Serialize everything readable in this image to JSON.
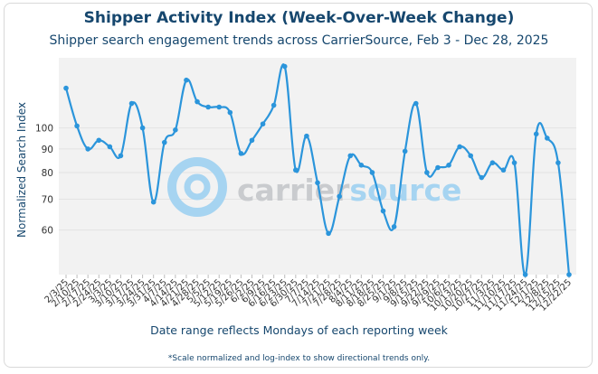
{
  "colors": {
    "line": "#2b95db",
    "title": "#16476e",
    "plot_bg": "#f2f2f2",
    "grid": "#e3e3e3",
    "watermark_gray": "#c9cbce",
    "watermark_blue": "#a6d4f1"
  },
  "chart_data": {
    "type": "line",
    "title": "Shipper Activity Index (Week-Over-Week Change)",
    "subtitle": "Shipper search engagement trends across CarrierSource, Feb 3 - Dec 28, 2025",
    "xlabel": "Date range reflects Mondays of each reporting week",
    "ylabel": "Normalized Search Index",
    "footnote": "*Scale normalized and log-index to show directional trends only.",
    "y_scale": "log",
    "ylim": [
      48,
      142
    ],
    "yticks": [
      60,
      70,
      80,
      90,
      100
    ],
    "watermark": {
      "word_start": "carrier",
      "word_end": "source"
    },
    "categories": [
      "2/3/25",
      "2/10/25",
      "2/17/25",
      "2/24/25",
      "3/3/25",
      "3/10/25",
      "3/17/25",
      "3/24/25",
      "3/31/25",
      "4/7/25",
      "4/14/25",
      "4/21/25",
      "4/28/25",
      "5/5/25",
      "5/12/25",
      "5/19/25",
      "5/26/25",
      "6/2/25",
      "6/9/25",
      "6/16/25",
      "6/23/25",
      "6/30/25",
      "7/7/25",
      "7/14/25",
      "7/21/25",
      "7/28/25",
      "8/4/25",
      "8/11/25",
      "8/18/25",
      "8/25/25",
      "9/1/25",
      "9/8/25",
      "9/15/25",
      "9/22/25",
      "9/29/25",
      "10/6/25",
      "10/13/25",
      "10/20/25",
      "10/27/25",
      "11/3/25",
      "11/10/25",
      "11/17/25",
      "11/24/25",
      "12/1/25",
      "12/8/25",
      "12/15/25",
      "12/22/25"
    ],
    "x_tick_labels": [
      "2/3/25",
      "2/10/25",
      "2/17/25",
      "2/24/25",
      "3/3/25",
      "3/10/25",
      "3/17/25",
      "3/24/25",
      "3/31/25",
      "4/7/25",
      "4/14/25",
      "4/21/25",
      "4/28/25",
      "5/5/25",
      "5/12/25",
      "5/19/25",
      "5/26/25",
      "6/2/25",
      "6/9/25",
      "6/16/25",
      "6/23/25",
      "6/30/25",
      "7/7/25",
      "7/14/25",
      "7/21/25",
      "7/28/25",
      "8/4/25",
      "8/11/25",
      "8/18/25",
      "8/25/25",
      "9/1/25",
      "9/8/25",
      "9/15/25",
      "9/22/25",
      "9/29/25",
      "10/6/25",
      "10/13/25",
      "10/20/25",
      "10/27/25",
      "11/3/25",
      "11/10/25",
      "11/17/25",
      "11/24/25",
      "12/1/25",
      "12/8/25",
      "12/15/25",
      "12/22/25"
    ],
    "series": [
      {
        "name": "Shipper Activity Index",
        "values": [
          122,
          101,
          90,
          94,
          91,
          87,
          113,
          100,
          69,
          93,
          99,
          127,
          114,
          111,
          111,
          108,
          88,
          94,
          102,
          112,
          136,
          81,
          96,
          76,
          59,
          71,
          87,
          83,
          80,
          66,
          61,
          89,
          113,
          80,
          82,
          83,
          91,
          87,
          78,
          84,
          81,
          84,
          48,
          97,
          95,
          84,
          48
        ]
      }
    ]
  }
}
